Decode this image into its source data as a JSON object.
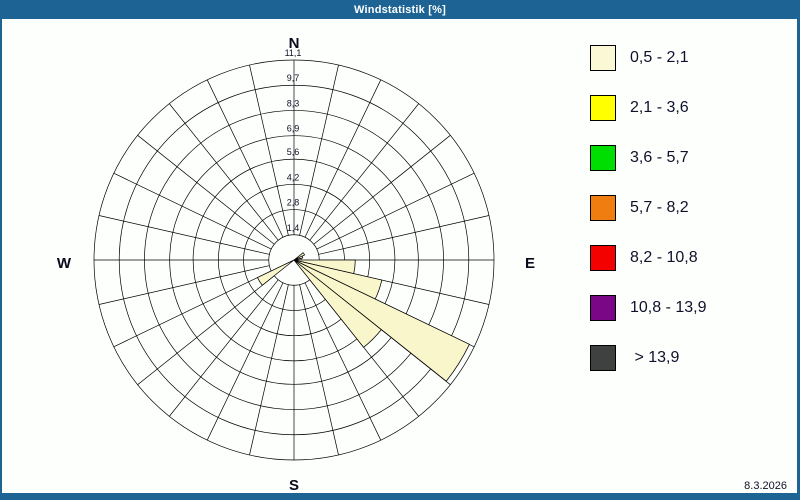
{
  "window": {
    "title": "Windstatistik [%]",
    "date": "8.3.2026",
    "titlebar_color": "#1d6394"
  },
  "chart_data": {
    "type": "wind-rose-polar-bar",
    "title": "Windstatistik [%]",
    "units": "percent frequency",
    "num_sectors": 28,
    "sector_width_deg": 12.857,
    "max_pct": 11.1,
    "grid": "polar, 8 rings, spokes every 12.857 deg, inner hole to first ring",
    "ring_values_pct": [
      1.4,
      2.8,
      4.2,
      5.6,
      6.9,
      8.3,
      9.7,
      11.1
    ],
    "ring_tick_labels": [
      "1,4",
      "2,8",
      "4,2",
      "5,6",
      "6,9",
      "8,3",
      "9,7",
      "11,1"
    ],
    "compass": {
      "north": "N",
      "east": "E",
      "south": "S",
      "west": "W"
    },
    "wedge_fill": "#faf6cc",
    "wedge_stroke": "#000000",
    "wedges": [
      {
        "azimuth_deg": 57.9,
        "value_pct": 0.65,
        "speed_class": "0,5 - 2,1"
      },
      {
        "azimuth_deg": 70.7,
        "value_pct": 0.5,
        "speed_class": "0,5 - 2,1"
      },
      {
        "azimuth_deg": 83.6,
        "value_pct": 0.4,
        "speed_class": "0,5 - 2,1"
      },
      {
        "azimuth_deg": 96.4,
        "value_pct": 3.4,
        "speed_class": "0,5 - 2,1"
      },
      {
        "azimuth_deg": 109.3,
        "value_pct": 5.0,
        "speed_class": "0,5 - 2,1"
      },
      {
        "azimuth_deg": 122.1,
        "value_pct": 10.8,
        "speed_class": "0,5 - 2,1"
      },
      {
        "azimuth_deg": 135.0,
        "value_pct": 6.2,
        "speed_class": "0,5 - 2,1"
      },
      {
        "azimuth_deg": 237.9,
        "value_pct": 2.25,
        "speed_class": "0,5 - 2,1"
      }
    ],
    "legend_position": "right"
  },
  "legend": {
    "entries": [
      {
        "color": "#fbf8d6",
        "label": "0,5 - 2,1"
      },
      {
        "color": "#ffff00",
        "label": "2,1 - 3,6"
      },
      {
        "color": "#00dd00",
        "label": "3,6 - 5,7"
      },
      {
        "color": "#ef7d10",
        "label": "5,7 - 8,2"
      },
      {
        "color": "#f30000",
        "label": "8,2 - 10,8"
      },
      {
        "color": "#7a0886",
        "label": "10,8 - 13,9"
      },
      {
        "color": "#3f4040",
        "label": " > 13,9"
      }
    ]
  }
}
